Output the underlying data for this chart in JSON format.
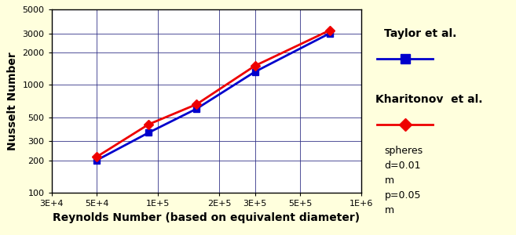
{
  "title": "",
  "xlabel": "Reynolds Number (based on equivalent diameter)",
  "ylabel": "Nusselt Number",
  "xlim": [
    30000.0,
    1000000.0
  ],
  "ylim": [
    100,
    5000
  ],
  "xticks": [
    30000.0,
    50000.0,
    100000.0,
    200000.0,
    300000.0,
    500000.0,
    1000000.0
  ],
  "xtick_labels": [
    "3E+4",
    "5E+4",
    "1E+5",
    "2E+5",
    "3E+5",
    "5E+5",
    "1E+6"
  ],
  "yticks": [
    100,
    200,
    300,
    500,
    1000,
    2000,
    3000,
    5000
  ],
  "ytick_labels": [
    "100",
    "200",
    "300",
    "500",
    "1000",
    "2000",
    "3000",
    "5000"
  ],
  "taylor_x": [
    50000.0,
    90000.0,
    155000.0,
    300000.0,
    700000.0
  ],
  "taylor_y": [
    200,
    360,
    600,
    1320,
    3000
  ],
  "kharitonov_x": [
    50000.0,
    90000.0,
    155000.0,
    300000.0,
    700000.0
  ],
  "kharitonov_y": [
    215,
    430,
    660,
    1500,
    3200
  ],
  "taylor_color": "#0000cc",
  "kharitonov_color": "#ee0000",
  "bg_color": "#ffffdd",
  "legend_taylor": "Taylor et al.",
  "legend_kharitonov": "Kharitonov  et al.",
  "annotation": "spheres\nd=0.01\nm\np=0.05\nm",
  "label_fontsize": 10,
  "tick_fontsize": 8,
  "legend_fontsize": 10,
  "annot_fontsize": 9
}
